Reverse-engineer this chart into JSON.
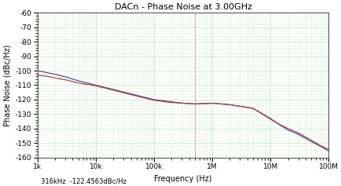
{
  "title": "DACn - Phase Noise at 3.00GHz",
  "xlabel": "Frequency (Hz)",
  "ylabel": "Phase Noise (dBc/Hz)",
  "ylim": [
    -160,
    -60
  ],
  "xlim": [
    1000,
    100000000
  ],
  "yticks": [
    -160,
    -150,
    -140,
    -130,
    -120,
    -110,
    -100,
    -90,
    -80,
    -70,
    -60
  ],
  "xtick_labels": [
    "1k",
    "10k",
    "100k",
    "1M",
    "10M",
    "100M"
  ],
  "xtick_vals": [
    1000,
    10000,
    100000,
    1000000,
    10000000,
    100000000
  ],
  "annotation": "316kHz  -122.4563dBc/Hz",
  "bg_color": "#ffffff",
  "plot_bg_color": "#ffffff",
  "grid_color": "#44bb44",
  "line_color_blue": "#4444aa",
  "line_color_red": "#bb3333",
  "curve1_x": [
    1000,
    1500,
    2000,
    3162,
    5000,
    10000,
    20000,
    50000,
    100000,
    200000,
    316000,
    500000,
    1000000,
    2000000,
    5000000,
    10000000,
    15000000,
    20000000,
    30000000,
    50000000,
    70000000,
    100000000
  ],
  "curve1_y": [
    -100.0,
    -101.5,
    -102.5,
    -104.5,
    -107.0,
    -110.0,
    -113.0,
    -117.0,
    -120.0,
    -121.5,
    -122.5,
    -123.0,
    -122.5,
    -123.5,
    -126.0,
    -133.0,
    -138.0,
    -141.0,
    -144.0,
    -149.0,
    -152.0,
    -155.5
  ],
  "curve2_x": [
    1000,
    1500,
    2000,
    3162,
    5000,
    10000,
    20000,
    50000,
    100000,
    200000,
    316000,
    500000,
    1000000,
    2000000,
    5000000,
    10000000,
    15000000,
    20000000,
    30000000,
    50000000,
    70000000,
    100000000
  ],
  "curve2_y": [
    -103.0,
    -104.0,
    -105.0,
    -106.5,
    -108.5,
    -110.5,
    -113.5,
    -117.5,
    -120.5,
    -122.0,
    -122.5,
    -123.0,
    -122.5,
    -123.5,
    -126.0,
    -133.5,
    -137.5,
    -140.0,
    -143.0,
    -148.0,
    -151.5,
    -154.5
  ],
  "vline_x": 500000,
  "vline_color": "#cc6666"
}
